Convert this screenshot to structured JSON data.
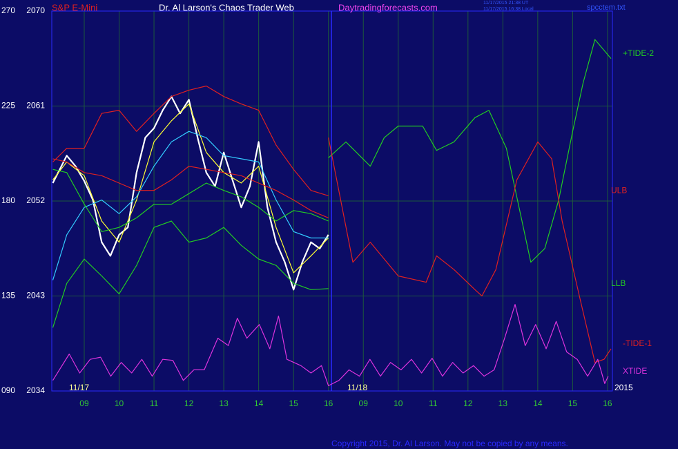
{
  "chart_data": {
    "type": "line",
    "title": "Dr. Al Larson's Chaos Trader Web",
    "instrument": "S&P E-Mini",
    "website": "Daytradingforecasts.com",
    "timestamps": [
      "11/17/2015 21:38 UT",
      "11/17/2015 16:38 Local"
    ],
    "file": "spcctem.txt",
    "copyright": "Copyright 2015, Dr. Al Larson. May not be copied by any means.",
    "annotations": [
      "11/17",
      "11/18",
      "2015"
    ],
    "xlim": [
      8.07,
      24.14
    ],
    "xticks": [
      {
        "value": 9,
        "label": "09"
      },
      10,
      11,
      12,
      13,
      14,
      15,
      16,
      {
        "value": 17,
        "label": "09"
      },
      {
        "value": 18,
        "label": "10"
      },
      {
        "value": 19,
        "label": "11"
      },
      {
        "value": 20,
        "label": "12"
      },
      {
        "value": 21,
        "label": "13"
      },
      {
        "value": 22,
        "label": "14"
      },
      {
        "value": 23,
        "label": "15"
      },
      {
        "value": 24,
        "label": "16"
      }
    ],
    "ylim": [
      2034,
      2070
    ],
    "yticks": [
      2034,
      2043,
      2052,
      2061,
      2070
    ],
    "y2lim": [
      90,
      270
    ],
    "y2ticks": [
      {
        "value": 90,
        "label": "090"
      },
      135,
      180,
      225,
      270
    ],
    "grid": true,
    "series": [
      {
        "color": "#ffffff",
        "x": [
          8.1,
          8.5,
          8.75,
          9,
          9.25,
          9.5,
          9.75,
          10,
          10.25,
          10.5,
          10.75,
          11,
          11.25,
          11.5,
          11.75,
          12,
          12.25,
          12.5,
          12.75,
          13,
          13.25,
          13.5,
          13.75,
          14,
          14.25,
          14.5,
          14.75,
          15,
          15.25,
          15.5,
          15.75,
          16
        ],
        "values": [
          2053.7,
          2056.3,
          2055.3,
          2053.9,
          2052.1,
          2048.1,
          2046.8,
          2048.8,
          2049.5,
          2054.7,
          2058.0,
          2058.9,
          2060.6,
          2061.9,
          2060.3,
          2061.6,
          2058.0,
          2054.7,
          2053.4,
          2056.6,
          2054.0,
          2051.4,
          2053.4,
          2057.6,
          2051.4,
          2048.1,
          2046.2,
          2043.6,
          2046.2,
          2048.1,
          2047.5,
          2048.8
        ]
      },
      {
        "color": "#ffff33",
        "x": [
          8.1,
          8.5,
          9,
          9.5,
          10,
          10.5,
          11,
          11.5,
          12,
          12.5,
          13,
          13.5,
          14,
          14.5,
          15,
          15.5,
          16
        ],
        "values": [
          2054.0,
          2055.7,
          2054.4,
          2050.1,
          2048.1,
          2052.1,
          2057.6,
          2059.6,
          2061.2,
          2056.6,
          2054.7,
          2053.7,
          2055.3,
          2049.5,
          2045.2,
          2046.8,
          2048.5
        ]
      },
      {
        "color": "#33ccff",
        "x": [
          8.1,
          8.5,
          9,
          9.5,
          10,
          10.5,
          11,
          11.5,
          12,
          12.5,
          13,
          13.5,
          14,
          14.5,
          15,
          15.5,
          16
        ],
        "values": [
          2044.5,
          2048.8,
          2051.4,
          2052.1,
          2050.8,
          2052.4,
          2055.3,
          2057.6,
          2058.6,
          2058.0,
          2056.3,
          2056.0,
          2055.7,
          2052.1,
          2049.1,
          2048.5,
          2048.5
        ]
      },
      {
        "name": "ULB",
        "color": "#e02020",
        "x": [
          8.1,
          8.5,
          9,
          9.5,
          10,
          10.5,
          11,
          11.5,
          12,
          12.5,
          13,
          13.5,
          14,
          14.5,
          15,
          15.5,
          16
        ],
        "values": [
          2055.7,
          2057.0,
          2057.0,
          2060.3,
          2060.6,
          2058.6,
          2060.3,
          2061.9,
          2062.5,
          2062.9,
          2061.9,
          2061.2,
          2060.6,
          2057.3,
          2055.0,
          2053.0,
          2052.5
        ]
      },
      {
        "color": "#e02020",
        "x": [
          8.1,
          8.5,
          9,
          9.5,
          10,
          10.5,
          11,
          11.5,
          12,
          12.5,
          13,
          13.5,
          14,
          14.5,
          15,
          15.5,
          16
        ],
        "values": [
          2056.0,
          2055.7,
          2054.7,
          2054.4,
          2053.7,
          2053.0,
          2053.0,
          2054.0,
          2055.3,
          2055.0,
          2054.7,
          2054.4,
          2053.7,
          2053.0,
          2052.1,
          2051.1,
          2050.4
        ]
      },
      {
        "color": "#22cc22",
        "x": [
          8.1,
          8.5,
          9,
          9.5,
          10,
          10.5,
          11,
          11.5,
          12,
          12.5,
          13,
          13.5,
          14,
          14.5,
          15,
          15.5,
          16
        ],
        "values": [
          2055.0,
          2054.7,
          2051.7,
          2049.1,
          2049.5,
          2050.4,
          2051.7,
          2051.7,
          2052.7,
          2053.7,
          2053.0,
          2052.4,
          2051.4,
          2050.1,
          2051.1,
          2050.8,
          2050.1
        ]
      },
      {
        "name": "LLB",
        "color": "#22cc22",
        "x": [
          8.1,
          8.5,
          9,
          9.5,
          10,
          10.5,
          11,
          11.5,
          12,
          12.5,
          13,
          13.5,
          14,
          14.5,
          15,
          15.5,
          16
        ],
        "values": [
          2040.0,
          2044.2,
          2046.5,
          2044.9,
          2043.2,
          2045.9,
          2049.5,
          2050.1,
          2048.1,
          2048.5,
          2049.5,
          2047.8,
          2046.5,
          2045.9,
          2044.2,
          2043.6,
          2043.7
        ]
      },
      {
        "name": "+TIDE-2",
        "color": "#22cc22",
        "x": [
          16,
          16.5,
          17.2,
          17.6,
          18,
          18.7,
          19.1,
          19.6,
          20.2,
          20.6,
          21.1,
          21.8,
          22.2,
          22.6,
          23,
          23.3,
          23.64,
          24.1
        ],
        "values": [
          2056.1,
          2057.6,
          2055.3,
          2058.0,
          2059.1,
          2059.1,
          2056.8,
          2057.6,
          2059.9,
          2060.6,
          2057.0,
          2046.2,
          2047.5,
          2052.1,
          2058.6,
          2063.2,
          2067.3,
          2065.5
        ]
      },
      {
        "name": "-TIDE-1",
        "color": "#e02020",
        "x": [
          16,
          16.7,
          17.2,
          18,
          18.8,
          19.1,
          19.6,
          20.2,
          20.4,
          20.8,
          21.4,
          22,
          22.4,
          22.7,
          23.2,
          23.64,
          23.9,
          24.1
        ],
        "values": [
          2058.0,
          2046.2,
          2048.1,
          2044.9,
          2044.3,
          2046.8,
          2045.5,
          2043.6,
          2043.0,
          2045.5,
          2054.0,
          2057.6,
          2056.0,
          2050.1,
          2042.9,
          2036.7,
          2037.0,
          2038.0
        ]
      },
      {
        "name": "XTIDE",
        "color": "#dd33dd",
        "x": [
          8.1,
          8.57,
          8.87,
          9.17,
          9.47,
          9.76,
          10.06,
          10.36,
          10.65,
          10.95,
          11.25,
          11.54,
          11.84,
          12.14,
          12.44,
          12.83,
          13.13,
          13.39,
          13.66,
          14.02,
          14.32,
          14.57,
          14.81,
          15.21,
          15.5,
          15.8,
          16,
          16.3,
          16.59,
          16.89,
          17.19,
          17.49,
          17.78,
          18.08,
          18.38,
          18.67,
          18.97,
          19.27,
          19.56,
          19.86,
          20.16,
          20.46,
          20.75,
          21.05,
          21.35,
          21.64,
          21.94,
          22.24,
          22.53,
          22.83,
          23.13,
          23.43,
          23.72,
          23.92,
          24.02
        ],
        "values": [
          2035.0,
          2037.5,
          2035.7,
          2037.0,
          2037.2,
          2035.4,
          2036.7,
          2035.7,
          2037.0,
          2035.4,
          2037.0,
          2036.9,
          2035.0,
          2036.0,
          2036.0,
          2039.0,
          2038.3,
          2040.9,
          2039.0,
          2040.3,
          2038.0,
          2041.1,
          2037.0,
          2036.4,
          2035.7,
          2036.4,
          2034.5,
          2035.0,
          2036.0,
          2035.4,
          2037.0,
          2035.4,
          2036.7,
          2036.0,
          2037.0,
          2035.7,
          2037.1,
          2035.4,
          2036.7,
          2035.7,
          2036.4,
          2035.4,
          2036.0,
          2039.0,
          2042.2,
          2038.3,
          2040.3,
          2038.0,
          2040.6,
          2037.7,
          2037.0,
          2035.4,
          2037.0,
          2034.7,
          2035.4
        ]
      }
    ]
  }
}
